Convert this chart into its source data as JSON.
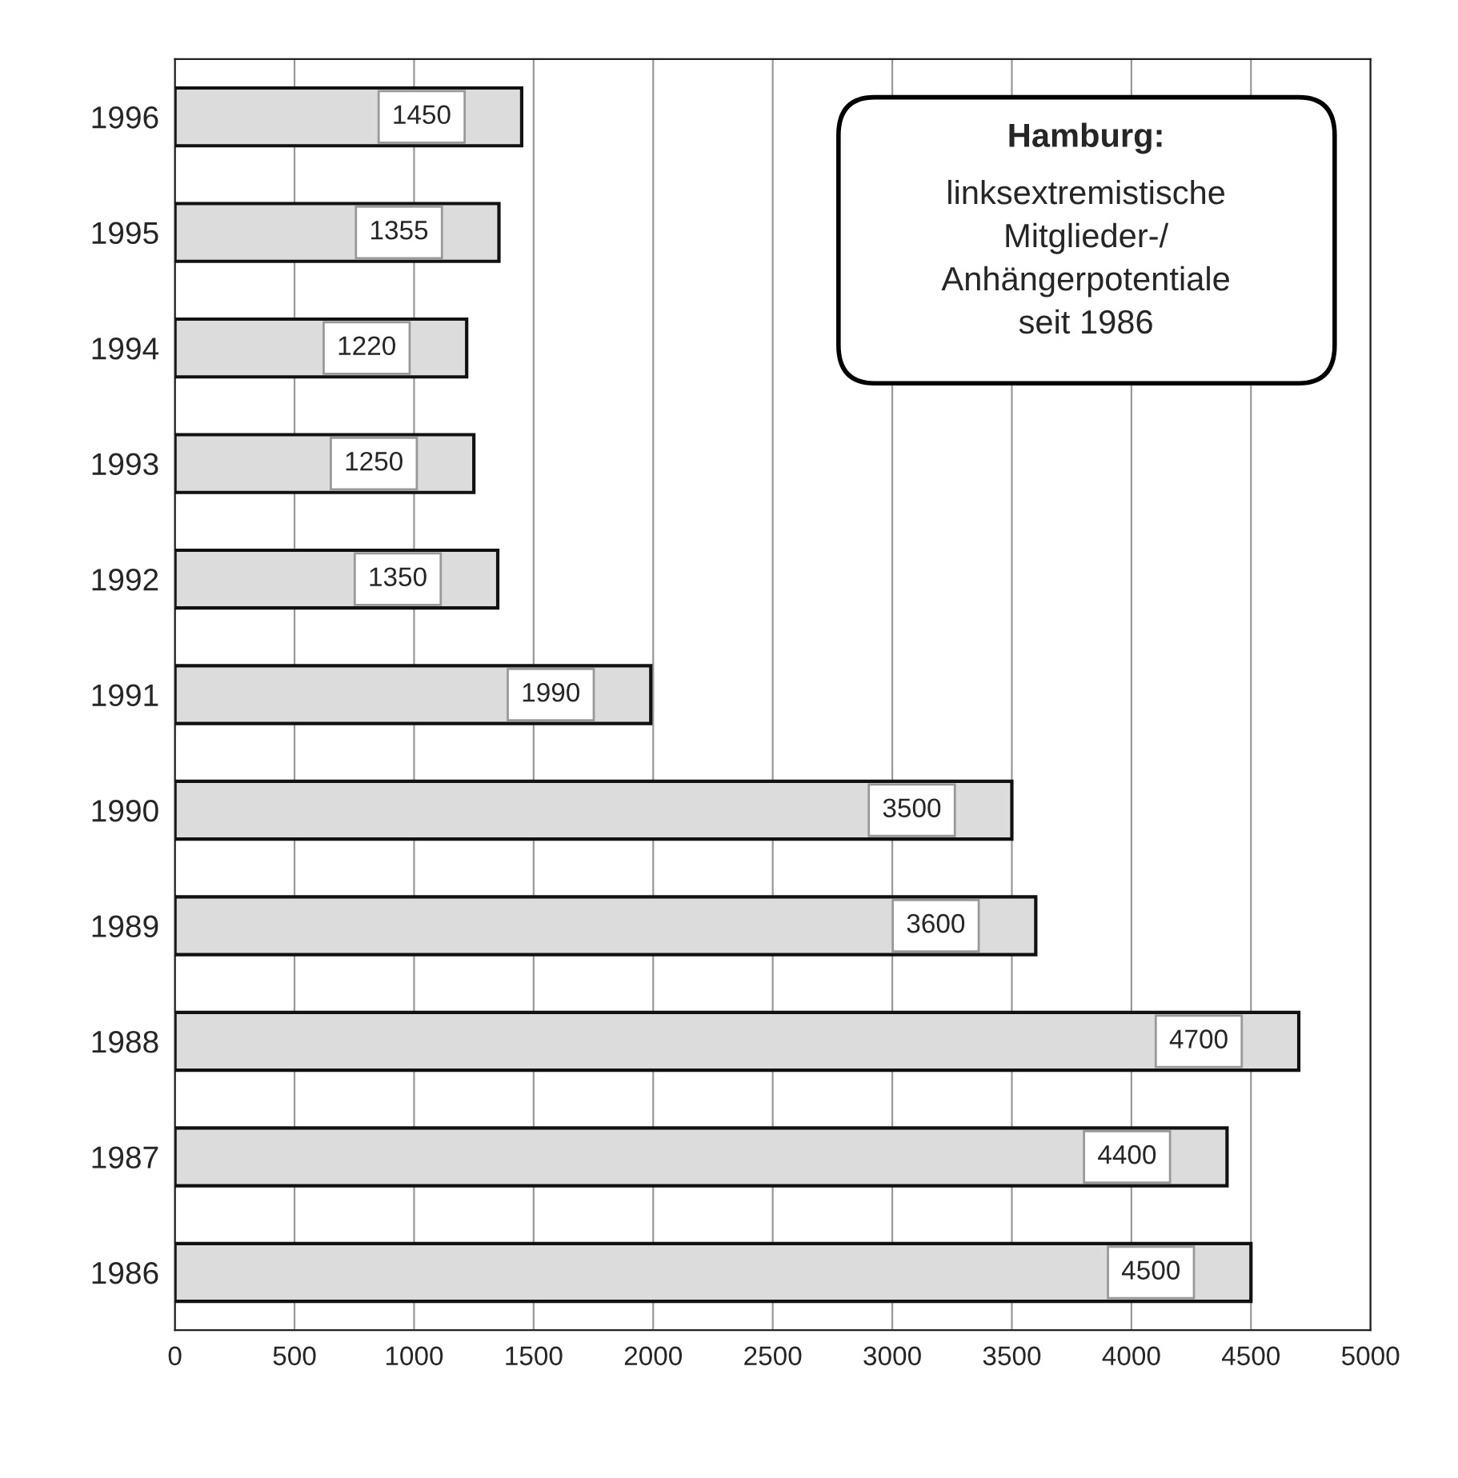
{
  "chart_data": {
    "type": "bar",
    "orientation": "horizontal",
    "title": "Hamburg:",
    "subtitle": "linksextremistische\nMitglieder-/\nAnhängerpotentiale\nseit 1986",
    "categories": [
      "1996",
      "1995",
      "1994",
      "1993",
      "1992",
      "1991",
      "1990",
      "1989",
      "1988",
      "1987",
      "1986"
    ],
    "values": [
      1450,
      1355,
      1220,
      1250,
      1350,
      1990,
      3500,
      3600,
      4700,
      4400,
      4500
    ],
    "color": "#dcdcdc",
    "data_labels": true,
    "grid": "x",
    "legend": false,
    "xlim": [
      0,
      5000
    ],
    "xticks": [
      0,
      500,
      1000,
      1500,
      2000,
      2500,
      3000,
      3500,
      4000,
      4500,
      5000
    ]
  }
}
